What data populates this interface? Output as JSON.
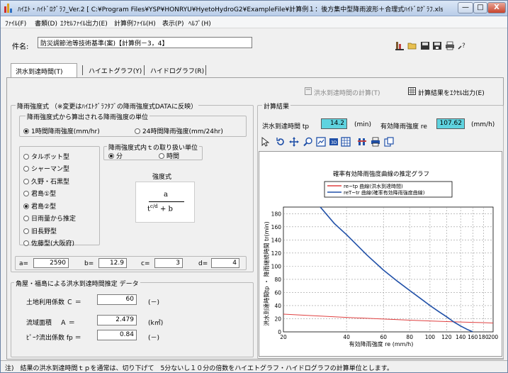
{
  "window": {
    "title": "ﾊｲｴﾄ・ﾊｲﾄﾞﾛｸﾞﾗﾌ_Ver.2 [ C:¥Program Files¥YSP¥HONRYU¥HyetoHydroG2¥ExampleFile¥計算例１：後方集中型降雨波形＋合理式ﾊｲﾄﾞﾛｸﾞﾗﾌ.xls ]",
    "minimize": "—",
    "maximize": "□",
    "close": "X"
  },
  "menu": [
    "ﾌｧｲﾙ(F)",
    "書類(D)",
    "ｴｸｾﾙﾌｧｲﾙ出力(E)",
    "計算例ﾌｧｲﾙ(H)",
    "表示(P)",
    "ﾍﾙﾌﾟ(H)"
  ],
  "case": {
    "label": "件名:",
    "value": "防災調節池等技術基準(案)【計算例－3，4】"
  },
  "tabs": [
    "洪水到達時間(T)",
    "ハイエトグラフ(Y)",
    "ハイドログラフ(R)"
  ],
  "actions": {
    "calc": "洪水到達時間の計算(T)",
    "excel": "計算結果をｴｸｾﾙ出力(E)"
  },
  "rain": {
    "legend": "降雨強度式 （※変更はﾊｲｴﾄｸﾞﾗﾌﾀﾌﾞの降雨強度式DATAに反映）",
    "unit_legend": "降雨強度式から算出される降雨強度の単位",
    "unit_options": [
      "1時間降雨強度(mm/hr)",
      "24時間降雨強度(mm/24hr)"
    ],
    "t_legend": "降雨強度式内ｔの取り扱い単位",
    "t_options": [
      "分",
      "時間"
    ],
    "types": [
      "タルボット型",
      "シャーマン型",
      "久野・石黒型",
      "君島①型",
      "君島②型",
      "日雨量から推定",
      "旧長野型",
      "佐藤型(大阪府)"
    ],
    "selected_type": "君島②型",
    "formula_title": "強度式",
    "formula_num": "a",
    "formula_den": "t",
    "formula_exp": "c/d",
    "formula_tail": "+ b",
    "params": [
      {
        "label": "a=",
        "value": "2590"
      },
      {
        "label": "b=",
        "value": "12.9"
      },
      {
        "label": "c=",
        "value": "3"
      },
      {
        "label": "d=",
        "value": "4"
      }
    ]
  },
  "kadoya": {
    "legend": "角屋・福島による洪水到達時間推定 データ",
    "rows": [
      {
        "label": "土地利用係数 Ｃ ＝",
        "value": "60",
        "unit": "(－)"
      },
      {
        "label": "流域面積　 Ａ ＝",
        "value": "2.479",
        "unit": "(k㎡)"
      },
      {
        "label": "ﾋﾟｰｸ流出係数 fp ＝",
        "value": "0.84",
        "unit": "(－)"
      }
    ]
  },
  "result": {
    "legend": "計算結果",
    "tp_label": "洪水到達時間 tp",
    "tp_value": "14.2",
    "tp_unit": "(min)",
    "re_label": "有効降雨強度 re",
    "re_value": "107.62",
    "re_unit": "(mm/h)"
  },
  "colors": {
    "series_red": "#e04040",
    "series_blue": "#2050a8",
    "result_box": "#5fd3df"
  },
  "chart_data": {
    "type": "line",
    "title": "確率有効降雨強度曲線の推定グラフ",
    "xlabel": "有効降雨強度 re (mm/h)",
    "ylabel": "洪水到達時間tp ・ 降雨継続時間 tr(min)",
    "x_scale": "log",
    "xlim": [
      20,
      200
    ],
    "ylim": [
      0,
      190
    ],
    "x_ticks": [
      "20",
      "40",
      "60",
      "80",
      "100",
      "120",
      "140",
      "160",
      "180",
      "200"
    ],
    "y_ticks": [
      "0",
      "20",
      "40",
      "60",
      "80",
      "100",
      "120",
      "140",
      "160",
      "180"
    ],
    "legend_position": "top-center",
    "series": [
      {
        "name": "re~tp 曲線(洪水到達時間)",
        "x": [
          20,
          40,
          60,
          80,
          100,
          120,
          140,
          160,
          180,
          200
        ],
        "y": [
          27,
          22,
          19.5,
          17.8,
          16.6,
          15.7,
          15,
          14.5,
          14,
          13.5
        ]
      },
      {
        "name": "reT~tr 曲線(確率有効降雨強度曲線)",
        "x": [
          26,
          30,
          35,
          40,
          50,
          60,
          70,
          80,
          90,
          100,
          110,
          120,
          130,
          140,
          150,
          160
        ],
        "y": [
          215,
          190,
          165,
          148,
          117,
          94,
          77,
          63,
          51,
          40,
          31,
          23,
          15,
          9,
          4,
          0
        ]
      }
    ]
  },
  "status": "注)　結果の洪水到達時間ｔｐを通常は、切り下げて　5分ないし１０分の倍数をハイエトグラフ・ハイドログラフの計算単位とします。"
}
